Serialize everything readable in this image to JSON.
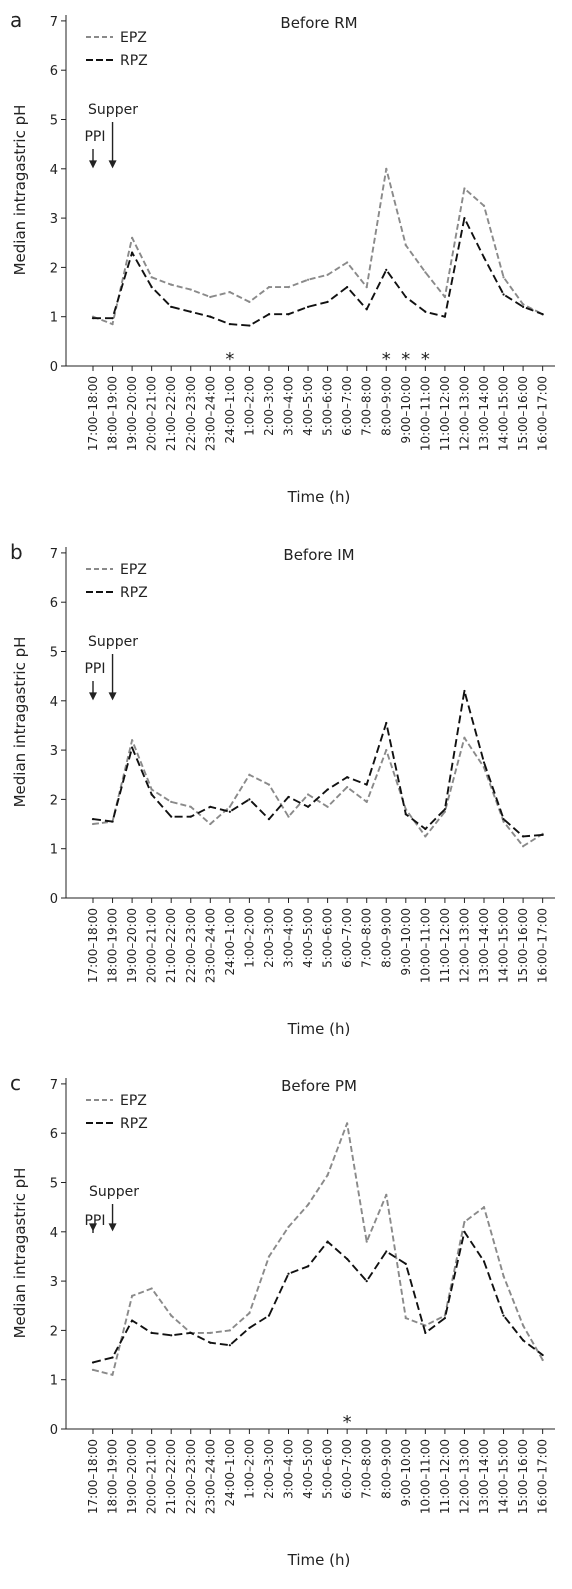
{
  "time_labels": [
    "17:00–18:00",
    "18:00–19:00",
    "19:00–20:00",
    "20:00–21:00",
    "21:00–22:00",
    "22:00–23:00",
    "23:00–24:00",
    "24:00–1:00",
    "1:00–2:00",
    "2:00–3:00",
    "3:00–4:00",
    "4:00–5:00",
    "5:00–6:00",
    "6:00–7:00",
    "7:00–8:00",
    "8:00–9:00",
    "9:00–10:00",
    "10:00–11:00",
    "11:00–12:00",
    "12:00–13:00",
    "13:00–14:00",
    "14:00–15:00",
    "15:00–16:00",
    "16:00–17:00"
  ],
  "colors": {
    "EPZ": "#8a8a8a",
    "RPZ": "#111111"
  },
  "annotations": {
    "supper": "Supper",
    "ppi": "PPI",
    "star": "*"
  },
  "chart_data": [
    {
      "type": "line",
      "panel": "a",
      "title": "Before RM",
      "xlabel": "Time (h)",
      "ylabel": "Median intragastric pH",
      "ylim": [
        0,
        7
      ],
      "yticks": [
        0,
        1,
        2,
        3,
        4,
        5,
        6,
        7
      ],
      "legend": "top-left",
      "grid": false,
      "series": [
        {
          "name": "EPZ",
          "values": [
            1.0,
            0.85,
            2.6,
            1.8,
            1.65,
            1.55,
            1.4,
            1.5,
            1.3,
            1.6,
            1.6,
            1.75,
            1.85,
            2.1,
            1.6,
            4.0,
            2.45,
            1.9,
            1.4,
            3.6,
            3.25,
            1.8,
            1.25,
            1.05
          ]
        },
        {
          "name": "RPZ",
          "values": [
            0.97,
            0.97,
            2.3,
            1.6,
            1.2,
            1.1,
            1.0,
            0.85,
            0.82,
            1.05,
            1.05,
            1.2,
            1.3,
            1.6,
            1.15,
            1.95,
            1.4,
            1.1,
            1.0,
            3.0,
            2.2,
            1.45,
            1.2,
            1.05
          ]
        }
      ],
      "significant": [
        "24:00–1:00",
        "8:00–9:00",
        "9:00–10:00",
        "10:00–11:00"
      ]
    },
    {
      "type": "line",
      "panel": "b",
      "title": "Before IM",
      "xlabel": "Time (h)",
      "ylabel": "Median intragastric pH",
      "ylim": [
        0,
        7
      ],
      "yticks": [
        0,
        1,
        2,
        3,
        4,
        5,
        6,
        7
      ],
      "legend": "top-left",
      "grid": false,
      "series": [
        {
          "name": "EPZ",
          "values": [
            1.5,
            1.55,
            3.2,
            2.2,
            1.95,
            1.85,
            1.5,
            1.85,
            2.5,
            2.3,
            1.65,
            2.1,
            1.85,
            2.25,
            1.95,
            3.0,
            1.8,
            1.25,
            1.75,
            3.25,
            2.65,
            1.55,
            1.05,
            1.3
          ]
        },
        {
          "name": "RPZ",
          "values": [
            1.6,
            1.55,
            3.05,
            2.1,
            1.65,
            1.65,
            1.85,
            1.75,
            2.0,
            1.6,
            2.05,
            1.85,
            2.2,
            2.45,
            2.3,
            3.55,
            1.7,
            1.4,
            1.8,
            4.2,
            2.75,
            1.6,
            1.25,
            1.28
          ]
        }
      ],
      "significant": []
    },
    {
      "type": "line",
      "panel": "c",
      "title": "Before PM",
      "xlabel": "Time (h)",
      "ylabel": "Median intragastric pH",
      "ylim": [
        0,
        7
      ],
      "yticks": [
        0,
        1,
        2,
        3,
        4,
        5,
        6,
        7
      ],
      "legend": "top-left",
      "grid": false,
      "series": [
        {
          "name": "EPZ",
          "values": [
            1.2,
            1.1,
            2.7,
            2.85,
            2.3,
            1.95,
            1.95,
            2.0,
            2.35,
            3.5,
            4.1,
            4.55,
            5.15,
            6.2,
            3.8,
            4.75,
            2.25,
            2.1,
            2.3,
            4.2,
            4.5,
            3.1,
            2.1,
            1.4
          ]
        },
        {
          "name": "RPZ",
          "values": [
            1.35,
            1.45,
            2.2,
            1.95,
            1.9,
            1.95,
            1.75,
            1.7,
            2.05,
            2.3,
            3.15,
            3.3,
            3.8,
            3.45,
            3.0,
            3.6,
            3.35,
            1.95,
            2.25,
            4.0,
            3.4,
            2.3,
            1.8,
            1.5
          ]
        }
      ],
      "significant": [
        "6:00–7:00"
      ]
    }
  ]
}
